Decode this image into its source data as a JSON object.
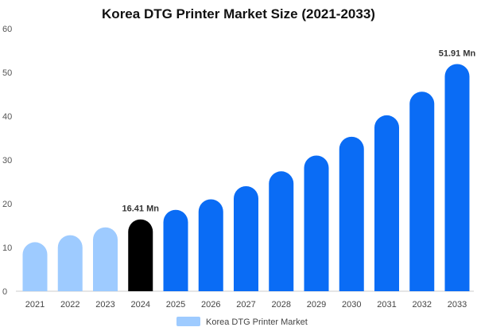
{
  "chart_data": {
    "type": "bar",
    "title": "Korea DTG Printer Market Size (2021-2033)",
    "categories": [
      "2021",
      "2022",
      "2023",
      "2024",
      "2025",
      "2026",
      "2027",
      "2028",
      "2029",
      "2030",
      "2031",
      "2032",
      "2033"
    ],
    "series": [
      {
        "name": "Korea DTG Printer Market",
        "values": [
          11.2,
          12.8,
          14.6,
          16.41,
          18.6,
          21.0,
          24.0,
          27.4,
          31.0,
          35.3,
          40.2,
          45.6,
          51.91
        ]
      }
    ],
    "data_labels": [
      {
        "category": "2024",
        "text": "16.41 Mn"
      },
      {
        "category": "2033",
        "text": "51.91 Mn"
      }
    ],
    "y_ticks": [
      "0",
      "10",
      "20",
      "30",
      "40",
      "50",
      "60"
    ],
    "ylim": [
      0,
      60
    ],
    "xlabel": "",
    "ylabel": "",
    "grid": false,
    "legend_position": "bottom-center",
    "colors": {
      "history": "#9ecbff",
      "base_year": "#000000",
      "forecast": "#0a6cf5",
      "legend": "#9ecbff"
    },
    "bar_roles": [
      "history",
      "history",
      "history",
      "base_year",
      "forecast",
      "forecast",
      "forecast",
      "forecast",
      "forecast",
      "forecast",
      "forecast",
      "forecast",
      "forecast"
    ]
  }
}
